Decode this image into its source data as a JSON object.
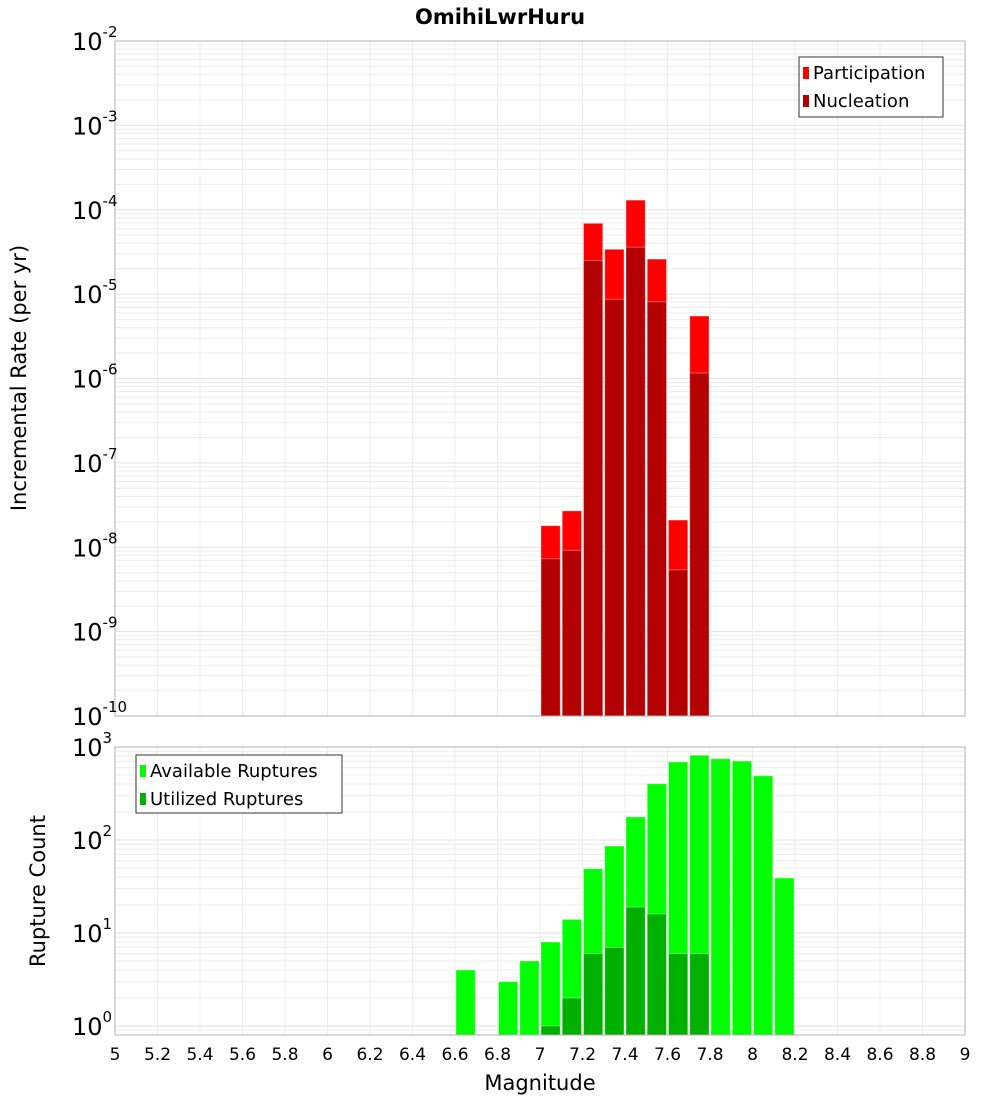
{
  "chart_data": [
    {
      "type": "bar",
      "title": "OmihiLwrHuru",
      "xlabel": "",
      "ylabel": "Incremental Rate (per yr)",
      "yscale": "log",
      "ylim": [
        1e-10,
        0.01
      ],
      "xlim": [
        5,
        9
      ],
      "y_tick_exponents": [
        "-10",
        "-9",
        "-8",
        "-7",
        "-6",
        "-5",
        "-4",
        "-3",
        "-2"
      ],
      "grid": true,
      "legend_position": "top-right",
      "bin_width": 0.1,
      "x": [
        7.05,
        7.15,
        7.25,
        7.35,
        7.45,
        7.55,
        7.65,
        7.75
      ],
      "series": [
        {
          "name": "Participation",
          "color": "#ff0000",
          "values": [
            1.8e-08,
            2.7e-08,
            6.9e-05,
            3.4e-05,
            0.00013,
            2.6e-05,
            2.1e-08,
            5.5e-06
          ]
        },
        {
          "name": "Nucleation",
          "color": "#b30000",
          "values": [
            7.3e-09,
            9.2e-09,
            2.5e-05,
            8.7e-06,
            3.6e-05,
            8.1e-06,
            5.4e-09,
            1.16e-06
          ]
        }
      ]
    },
    {
      "type": "bar",
      "xlabel": "Magnitude",
      "ylabel": "Rupture Count",
      "yscale": "log",
      "ylim": [
        0.8,
        1000
      ],
      "xlim": [
        5,
        9
      ],
      "y_tick_exponents": [
        "0",
        "1",
        "2",
        "3"
      ],
      "x_tick_labels": [
        "5",
        "5.2",
        "5.4",
        "5.6",
        "5.8",
        "6",
        "6.2",
        "6.4",
        "6.6",
        "6.8",
        "7",
        "7.2",
        "7.4",
        "7.6",
        "7.8",
        "8",
        "8.2",
        "8.4",
        "8.6",
        "8.8",
        "9"
      ],
      "grid": true,
      "legend_position": "top-left",
      "bin_width": 0.1,
      "series": [
        {
          "name": "Available Ruptures",
          "color": "#00ff00",
          "x": [
            6.65,
            6.85,
            6.95,
            7.05,
            7.15,
            7.25,
            7.35,
            7.45,
            7.55,
            7.65,
            7.75,
            7.85,
            7.95,
            8.05,
            8.15
          ],
          "values": [
            4,
            3,
            5,
            8,
            14,
            49,
            86,
            177,
            403,
            690,
            815,
            748,
            706,
            491,
            39
          ]
        },
        {
          "name": "Utilized Ruptures",
          "color": "#00b000",
          "x": [
            7.05,
            7.15,
            7.25,
            7.35,
            7.45,
            7.55,
            7.65,
            7.75
          ],
          "values": [
            1,
            2,
            6,
            7,
            19,
            16,
            6,
            6
          ]
        }
      ]
    }
  ]
}
